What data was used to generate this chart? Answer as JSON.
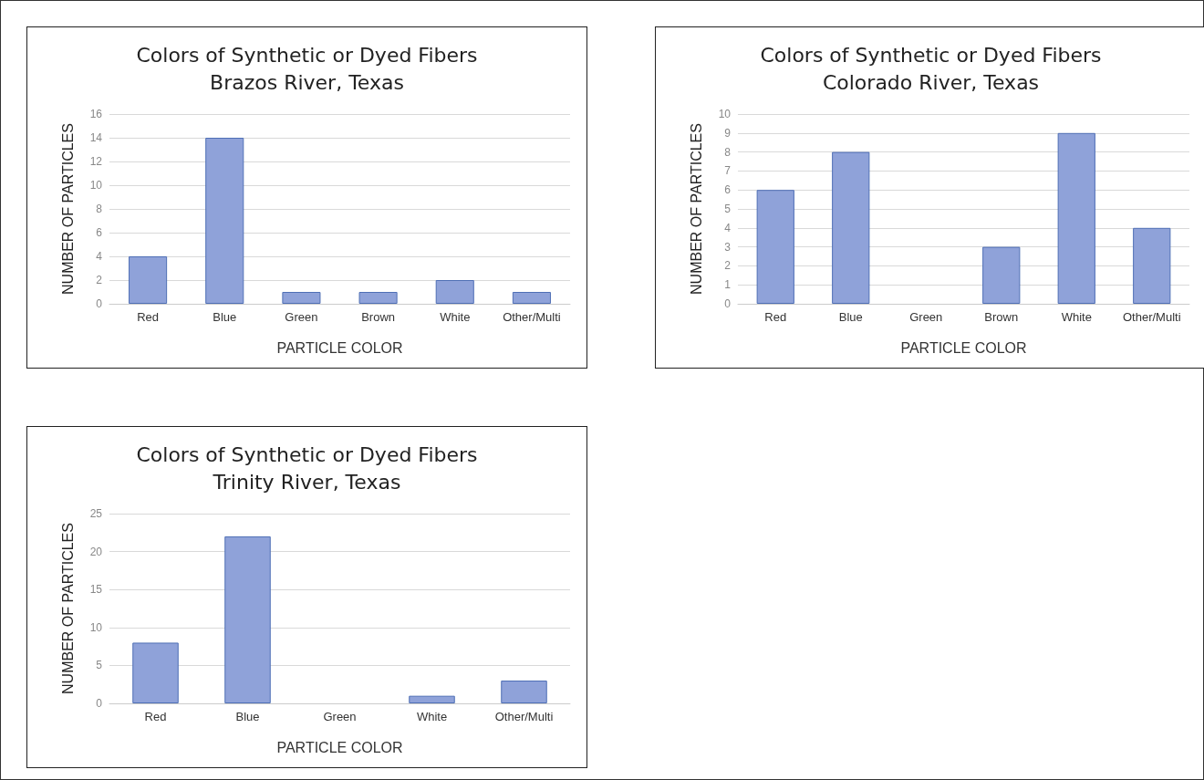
{
  "chart_data": [
    {
      "type": "bar",
      "title": "Colors of Synthetic or Dyed Fibers",
      "subtitle": "Brazos River, Texas",
      "xlabel": "PARTICLE COLOR",
      "ylabel": "NUMBER OF PARTICLES",
      "categories": [
        "Red",
        "Blue",
        "Green",
        "Brown",
        "White",
        "Other/Multi"
      ],
      "values": [
        4,
        14,
        1,
        1,
        2,
        1
      ],
      "color": "#8fa2d9",
      "ylim": [
        0,
        16
      ],
      "yticks": [
        0,
        2,
        4,
        6,
        8,
        10,
        12,
        14,
        16
      ],
      "grid": "y"
    },
    {
      "type": "bar",
      "title": "Colors of Synthetic or Dyed Fibers",
      "subtitle": "Colorado River, Texas",
      "xlabel": "PARTICLE COLOR",
      "ylabel": "NUMBER OF PARTICLES",
      "categories": [
        "Red",
        "Blue",
        "Green",
        "Brown",
        "White",
        "Other/Multi"
      ],
      "values": [
        6,
        8,
        0,
        3,
        9,
        4
      ],
      "color": "#8fa2d9",
      "ylim": [
        0,
        10
      ],
      "yticks": [
        0,
        1,
        2,
        3,
        4,
        5,
        6,
        7,
        8,
        9,
        10
      ],
      "grid": "y"
    },
    {
      "type": "bar",
      "title": "Colors of Synthetic or Dyed Fibers",
      "subtitle": "Trinity River, Texas",
      "xlabel": "PARTICLE COLOR",
      "ylabel": "NUMBER OF PARTICLES",
      "categories": [
        "Red",
        "Blue",
        "Green",
        "White",
        "Other/Multi"
      ],
      "values": [
        8,
        22,
        0,
        1,
        3
      ],
      "color": "#8fa2d9",
      "ylim": [
        0,
        25
      ],
      "yticks": [
        0,
        5,
        10,
        15,
        20,
        25
      ],
      "grid": "y"
    }
  ]
}
